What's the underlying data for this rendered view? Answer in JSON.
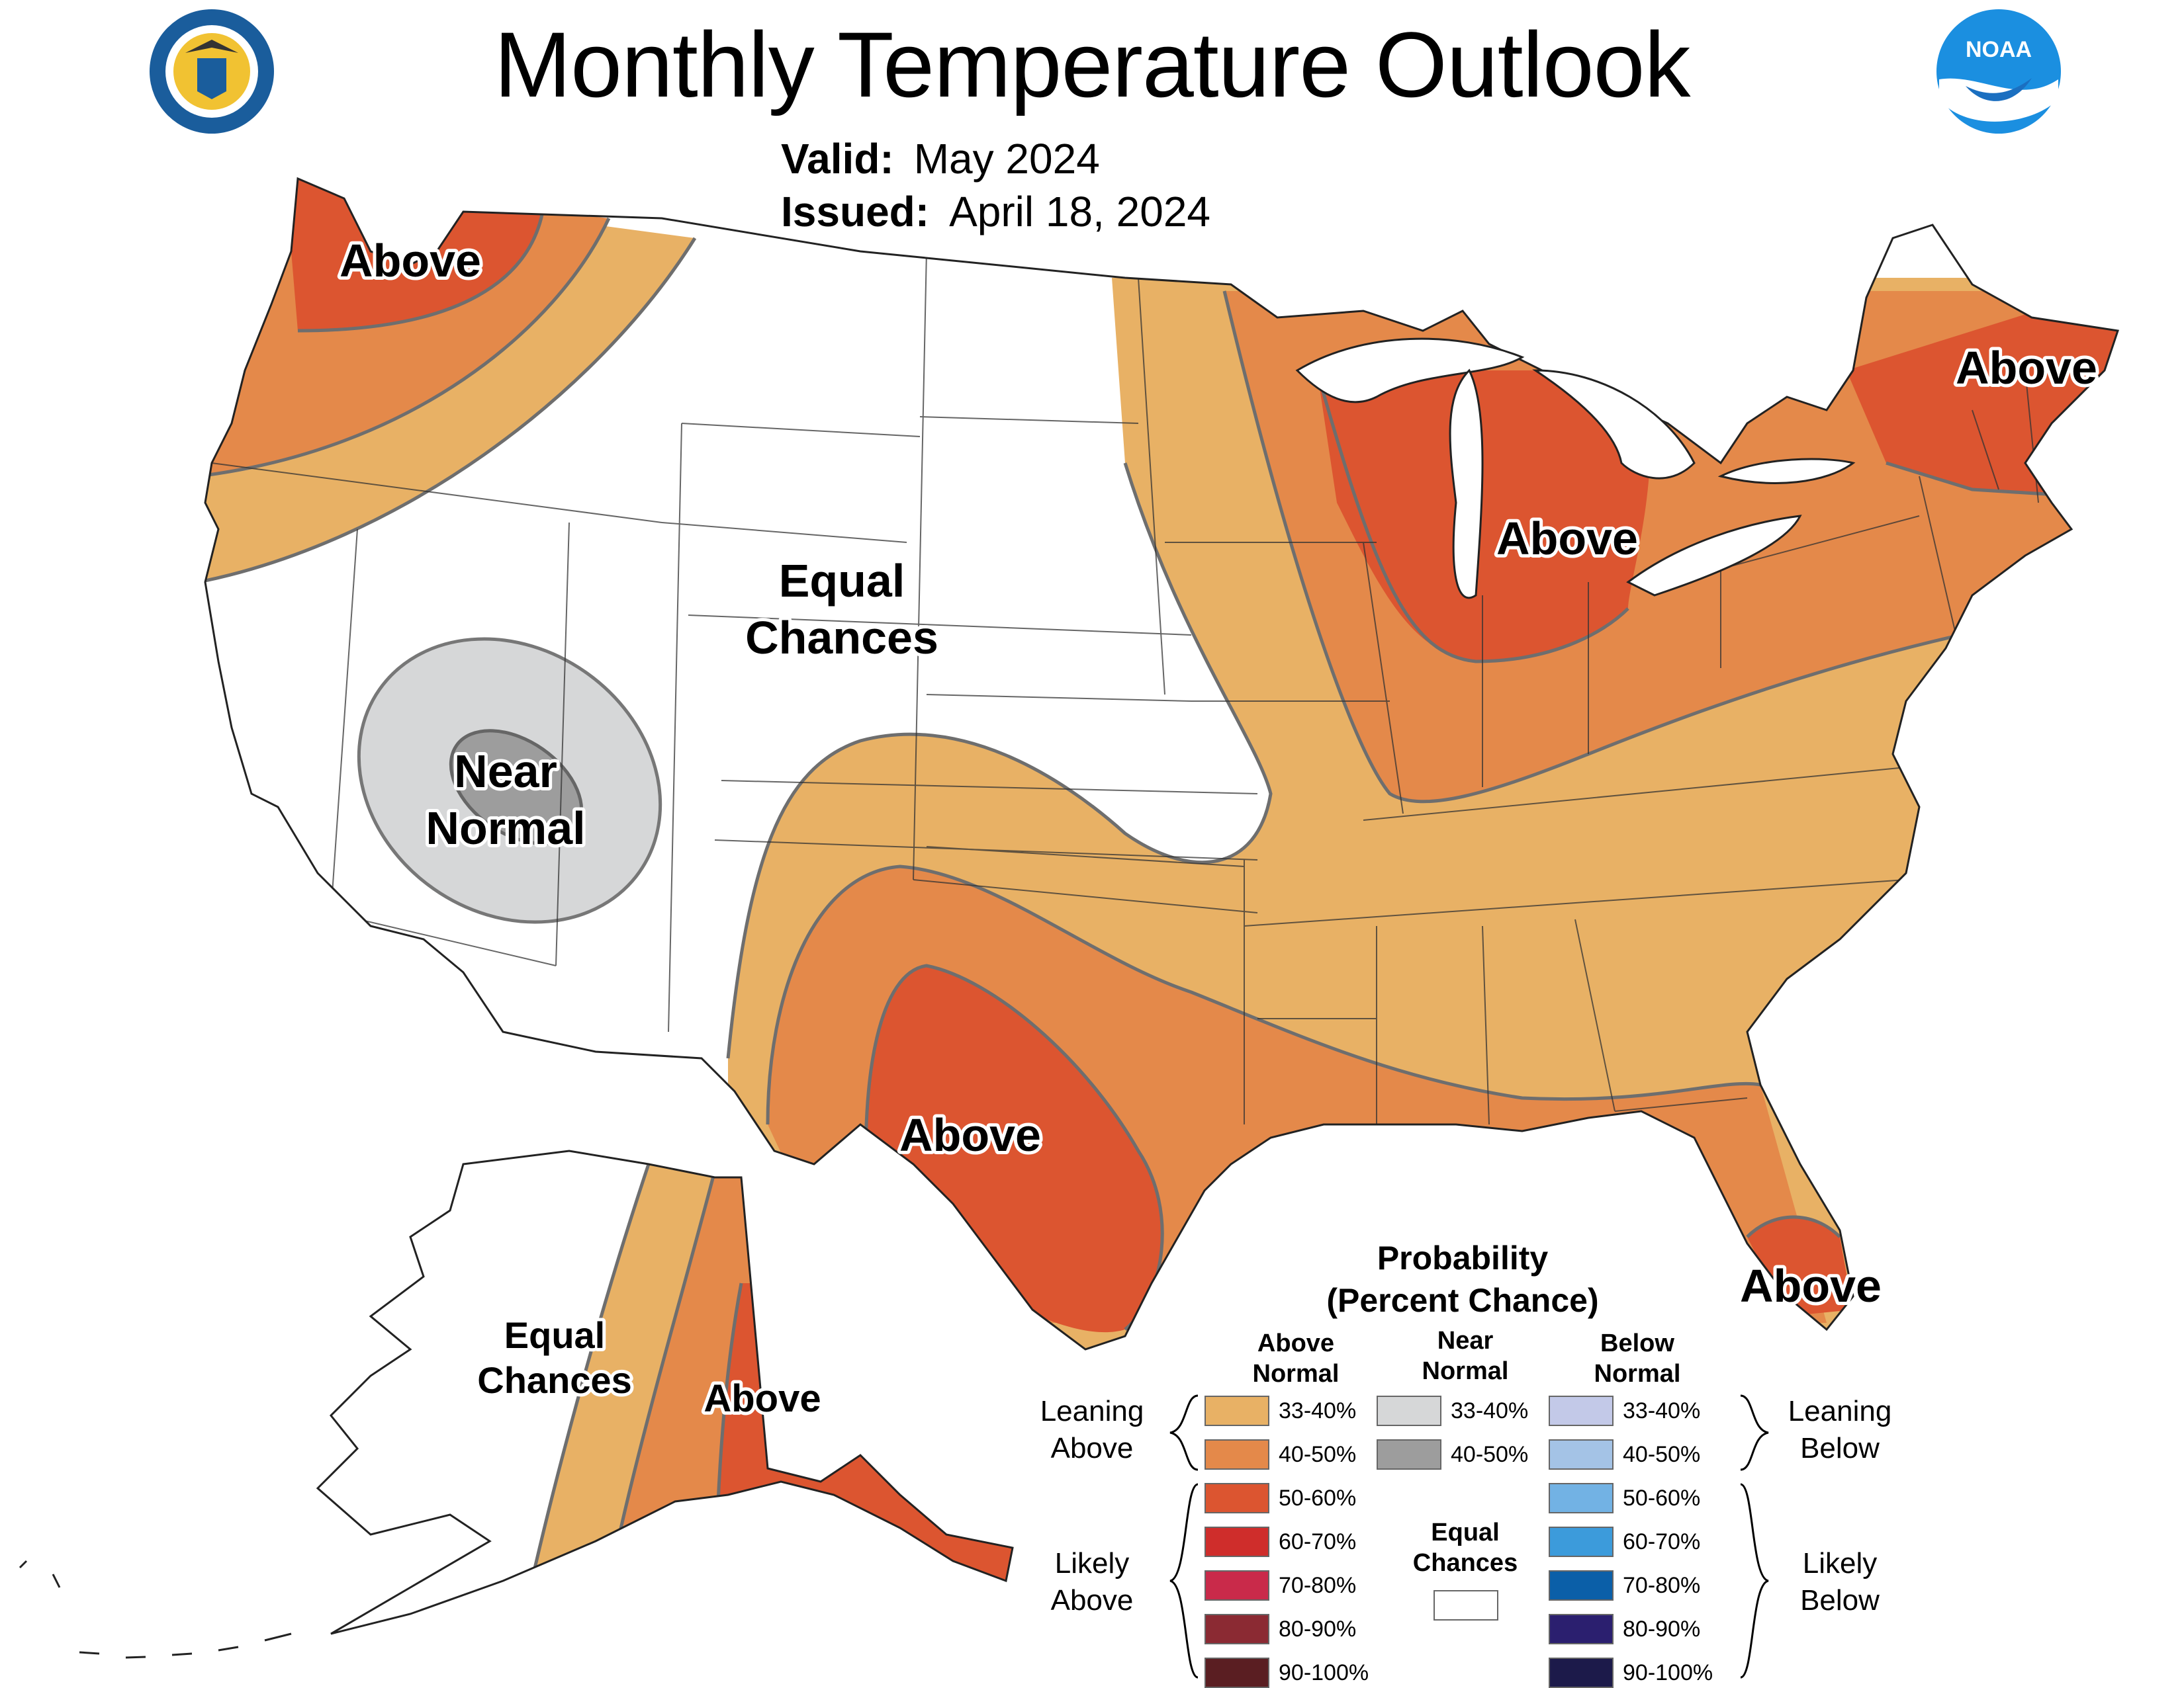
{
  "title": "Monthly Temperature Outlook",
  "valid_label": "Valid:",
  "valid_value": "May 2024",
  "issued_label": "Issued:",
  "issued_value": "April 18, 2024",
  "logos": {
    "left": "department-of-commerce-seal",
    "right": "noaa-logo",
    "noaa_text": "NOAA"
  },
  "map_labels": {
    "pacific_nw": "Above",
    "great_lakes": "Above",
    "new_england": "Above",
    "texas": "Above",
    "florida": "Above",
    "alaska_east": "Above",
    "central_line1": "Equal",
    "central_line2": "Chances",
    "nevada_line1": "Near",
    "nevada_line2": "Normal",
    "alaska_west_line1": "Equal",
    "alaska_west_line2": "Chances"
  },
  "legend": {
    "title_line1": "Probability",
    "title_line2": "(Percent Chance)",
    "above_head_line1": "Above",
    "above_head_line2": "Normal",
    "near_head_line1": "Near",
    "near_head_line2": "Normal",
    "below_head_line1": "Below",
    "below_head_line2": "Normal",
    "leaning_above_line1": "Leaning",
    "leaning_above_line2": "Above",
    "likely_above_line1": "Likely",
    "likely_above_line2": "Above",
    "leaning_below_line1": "Leaning",
    "leaning_below_line2": "Below",
    "likely_below_line1": "Likely",
    "likely_below_line2": "Below",
    "equal_line1": "Equal",
    "equal_line2": "Chances",
    "above": [
      {
        "range": "33-40%",
        "color": "#e8b165"
      },
      {
        "range": "40-50%",
        "color": "#e4894a"
      },
      {
        "range": "50-60%",
        "color": "#dc5530"
      },
      {
        "range": "60-70%",
        "color": "#cf2d2b"
      },
      {
        "range": "70-80%",
        "color": "#c92a4a"
      },
      {
        "range": "80-90%",
        "color": "#8b2a33"
      },
      {
        "range": "90-100%",
        "color": "#5a1e22"
      }
    ],
    "near": [
      {
        "range": "33-40%",
        "color": "#d6d7d8"
      },
      {
        "range": "40-50%",
        "color": "#9d9d9d"
      }
    ],
    "below": [
      {
        "range": "33-40%",
        "color": "#c3c9e8"
      },
      {
        "range": "40-50%",
        "color": "#a4c3e6"
      },
      {
        "range": "50-60%",
        "color": "#72b2e4"
      },
      {
        "range": "60-70%",
        "color": "#3c9bdb"
      },
      {
        "range": "70-80%",
        "color": "#0b5fa8"
      },
      {
        "range": "80-90%",
        "color": "#2b1f6f"
      },
      {
        "range": "90-100%",
        "color": "#1c1a4a"
      }
    ],
    "equal_color": "#ffffff"
  }
}
